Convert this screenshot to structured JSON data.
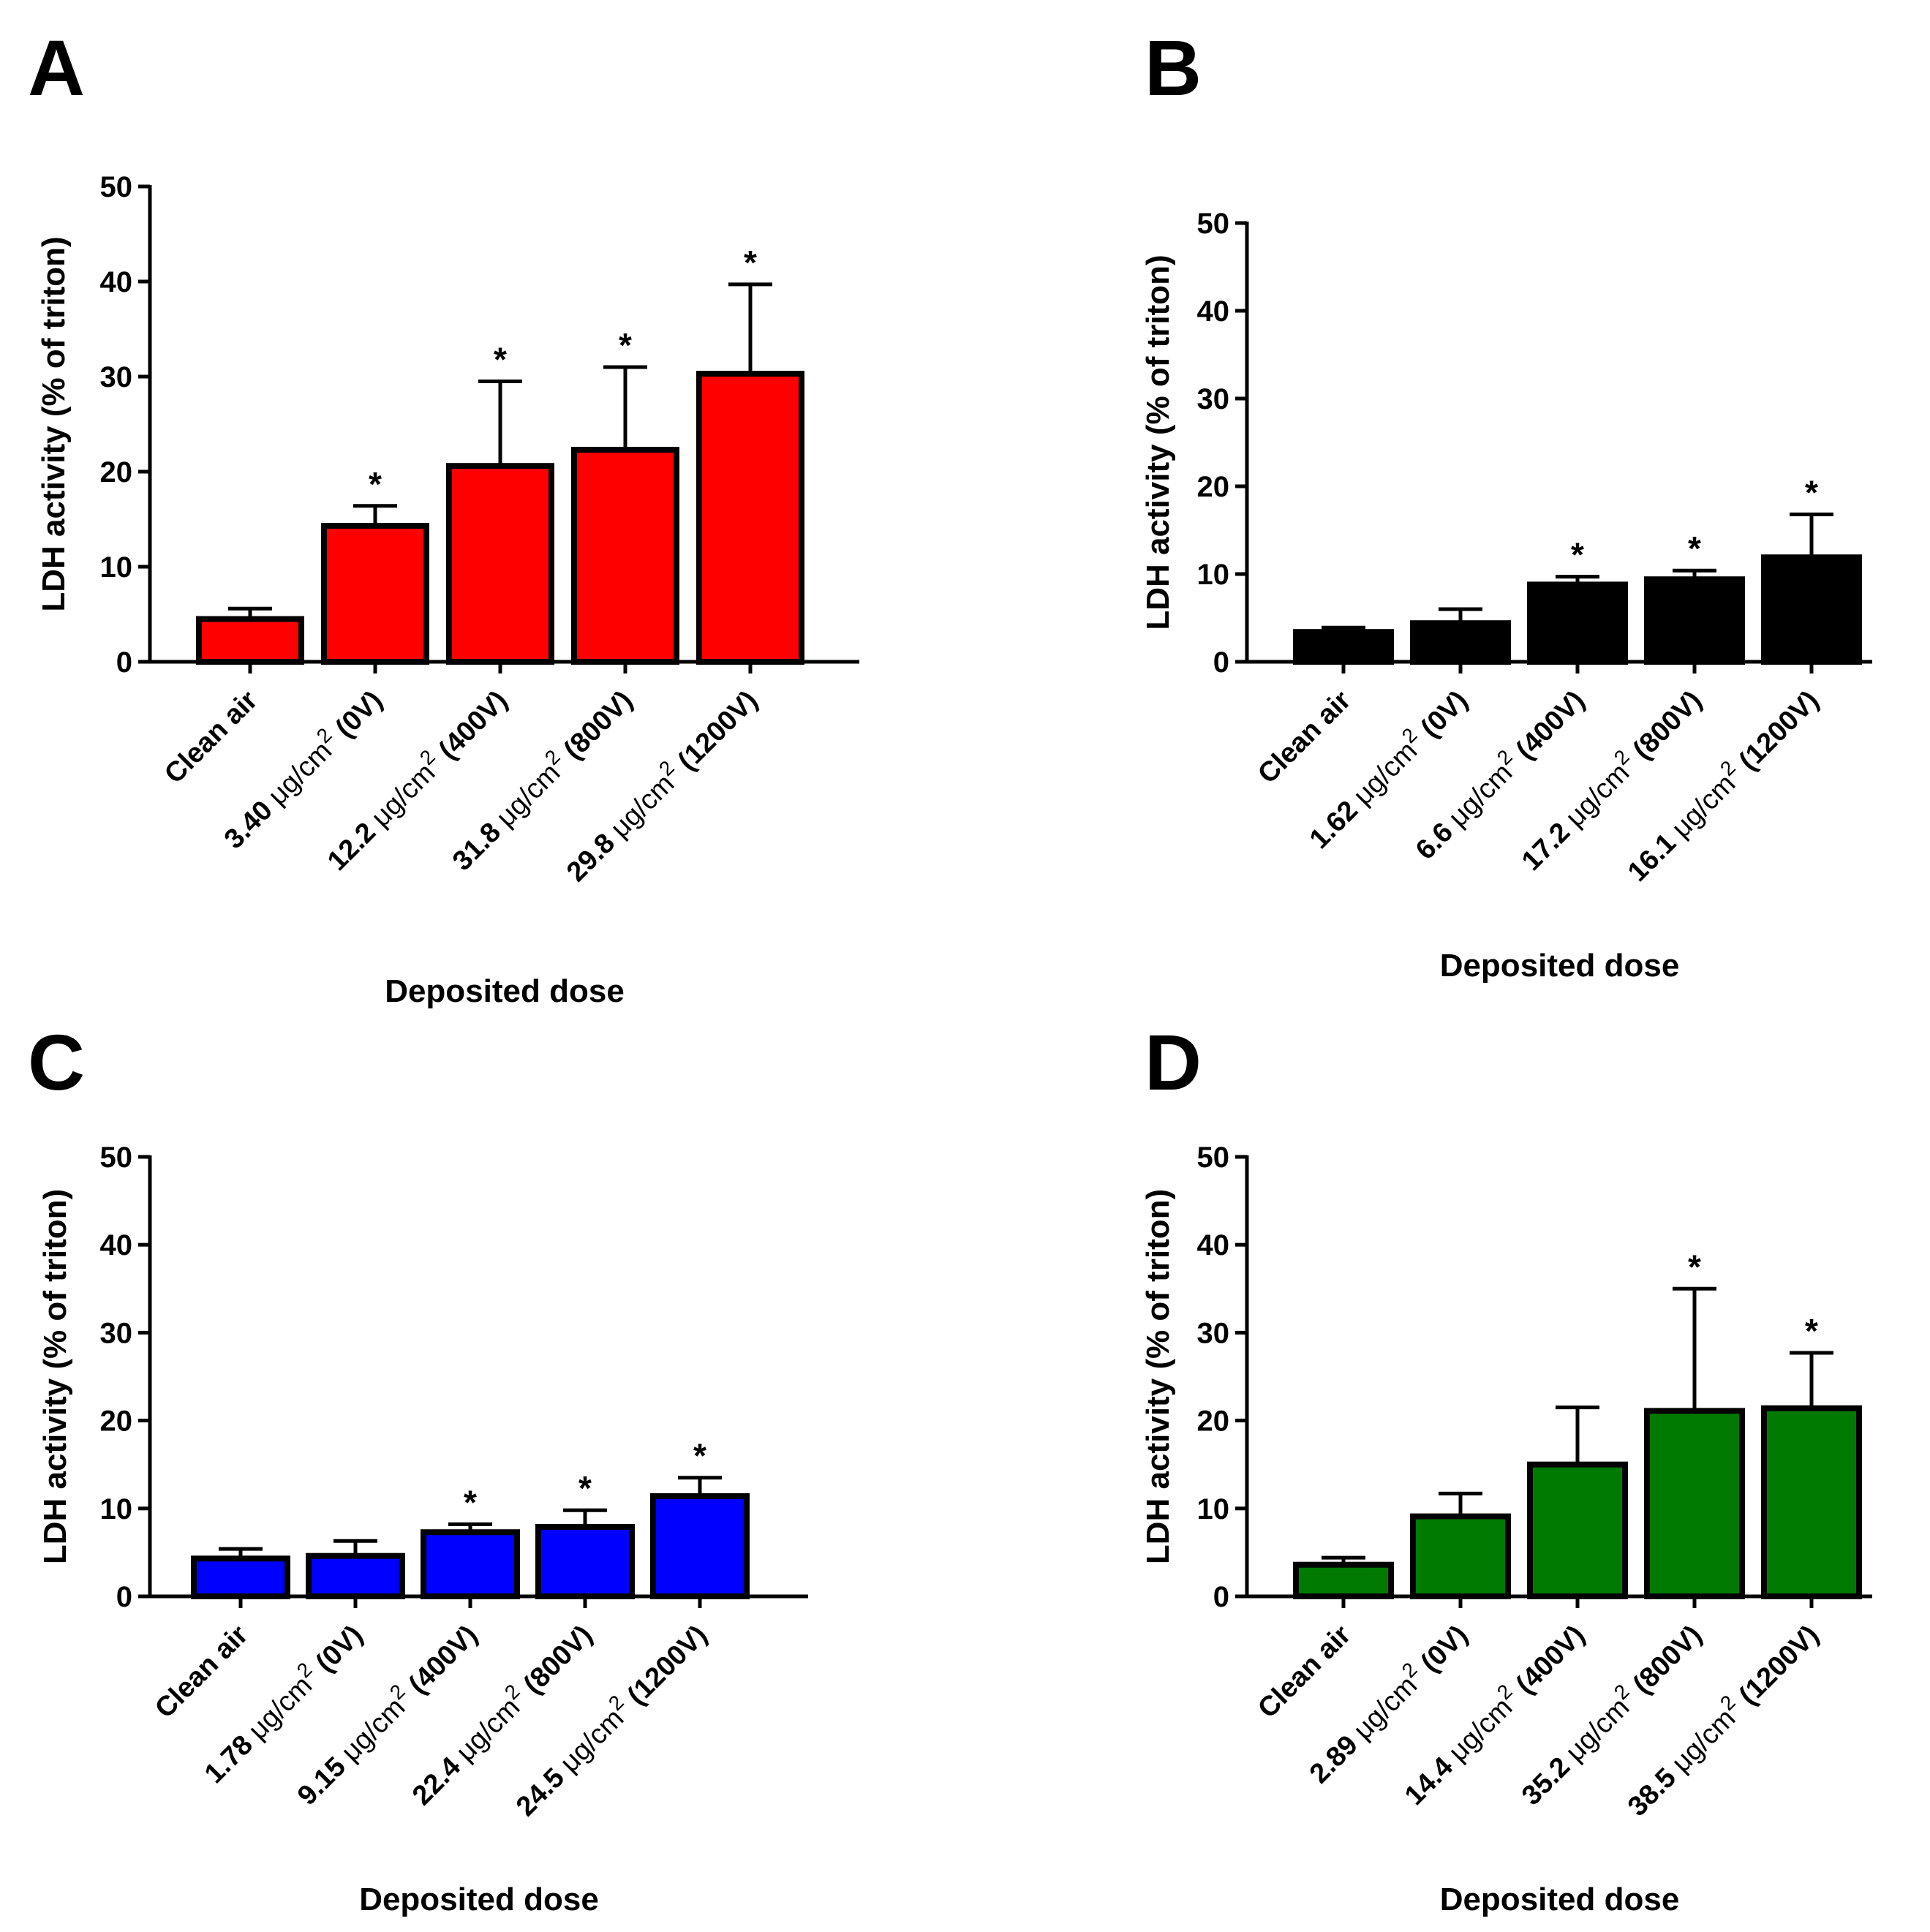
{
  "chart_data": [
    {
      "panel": "A",
      "type": "bar",
      "color": "#ff0000",
      "xlabel": "Deposited dose",
      "ylabel": "LDH activity (% of triton)",
      "ylim": [
        0,
        50
      ],
      "yticks": [
        0,
        10,
        20,
        30,
        40,
        50
      ],
      "categories": [
        {
          "num": "Clean air",
          "unit": "",
          "sup": "",
          "tail": ""
        },
        {
          "num": "3.40 ",
          "unit": "μg/cm",
          "sup": "2",
          "tail": " (0V)"
        },
        {
          "num": "12.2 ",
          "unit": "μg/cm",
          "sup": "2",
          "tail": " (400V)"
        },
        {
          "num": "31.8 ",
          "unit": "μg/cm",
          "sup": "2",
          "tail": " (800V)"
        },
        {
          "num": "29.8 ",
          "unit": "μg/cm",
          "sup": "2",
          "tail": " (1200V)"
        }
      ],
      "values": [
        4.5,
        14.3,
        20.6,
        22.3,
        30.3
      ],
      "errors": [
        5.6,
        16.4,
        29.5,
        31.0,
        39.7
      ],
      "significance": [
        "",
        "*",
        "*",
        "*",
        "*"
      ]
    },
    {
      "panel": "B",
      "type": "bar",
      "color": "#000000",
      "xlabel": "Deposited dose",
      "ylabel": "LDH activity (% of triton)",
      "ylim": [
        0,
        50
      ],
      "yticks": [
        0,
        10,
        20,
        30,
        40,
        50
      ],
      "categories": [
        {
          "num": "Clean air",
          "unit": "",
          "sup": "",
          "tail": ""
        },
        {
          "num": "1.62 ",
          "unit": "μg/cm",
          "sup": "2",
          "tail": " (0V)"
        },
        {
          "num": "6.6 ",
          "unit": "μg/cm",
          "sup": "2",
          "tail": " (400V)"
        },
        {
          "num": "17.2 ",
          "unit": "μg/cm",
          "sup": "2",
          "tail": " (800V)"
        },
        {
          "num": "16.1 ",
          "unit": "μg/cm",
          "sup": "2",
          "tail": " (1200V)"
        }
      ],
      "values": [
        3.4,
        4.4,
        8.8,
        9.4,
        11.9
      ],
      "errors": [
        3.9,
        6.0,
        9.7,
        10.4,
        16.8
      ],
      "significance": [
        "",
        "",
        "*",
        "*",
        "*"
      ]
    },
    {
      "panel": "C",
      "type": "bar",
      "color": "#0000ff",
      "xlabel": "Deposited dose",
      "ylabel": "LDH activity (% of triton)",
      "ylim": [
        0,
        50
      ],
      "yticks": [
        0,
        10,
        20,
        30,
        40,
        50
      ],
      "categories": [
        {
          "num": "Clean air",
          "unit": "",
          "sup": "",
          "tail": ""
        },
        {
          "num": "1.78 ",
          "unit": "μg/cm",
          "sup": "2",
          "tail": " (0V)"
        },
        {
          "num": "9.15 ",
          "unit": "μg/cm",
          "sup": "2",
          "tail": " (400V)"
        },
        {
          "num": "22.4 ",
          "unit": "μg/cm",
          "sup": "2",
          "tail": " (800V)"
        },
        {
          "num": "24.5 ",
          "unit": "μg/cm",
          "sup": "2",
          "tail": " (1200V)"
        }
      ],
      "values": [
        4.3,
        4.6,
        7.3,
        7.9,
        11.4
      ],
      "errors": [
        5.4,
        6.3,
        8.2,
        9.8,
        13.5
      ],
      "significance": [
        "",
        "",
        "*",
        "*",
        "*"
      ]
    },
    {
      "panel": "D",
      "type": "bar",
      "color": "#007a00",
      "xlabel": "Deposited dose",
      "ylabel": "LDH activity (% of triton)",
      "ylim": [
        0,
        50
      ],
      "yticks": [
        0,
        10,
        20,
        30,
        40,
        50
      ],
      "categories": [
        {
          "num": "Clean air",
          "unit": "",
          "sup": "",
          "tail": ""
        },
        {
          "num": "2.89 ",
          "unit": "μg/cm",
          "sup": "2",
          "tail": " (0V)"
        },
        {
          "num": "14.4 ",
          "unit": "μg/cm",
          "sup": "2",
          "tail": " (400V)"
        },
        {
          "num": "35.2 ",
          "unit": "μg/cm",
          "sup": "2",
          "tail": " (800V)"
        },
        {
          "num": "38.5 ",
          "unit": "μg/cm",
          "sup": "2",
          "tail": " (1200V)"
        }
      ],
      "values": [
        3.6,
        9.1,
        15.0,
        21.1,
        21.4
      ],
      "errors": [
        4.4,
        11.7,
        21.5,
        35.0,
        27.7
      ],
      "significance": [
        "",
        "",
        "",
        "*",
        "*"
      ]
    }
  ]
}
